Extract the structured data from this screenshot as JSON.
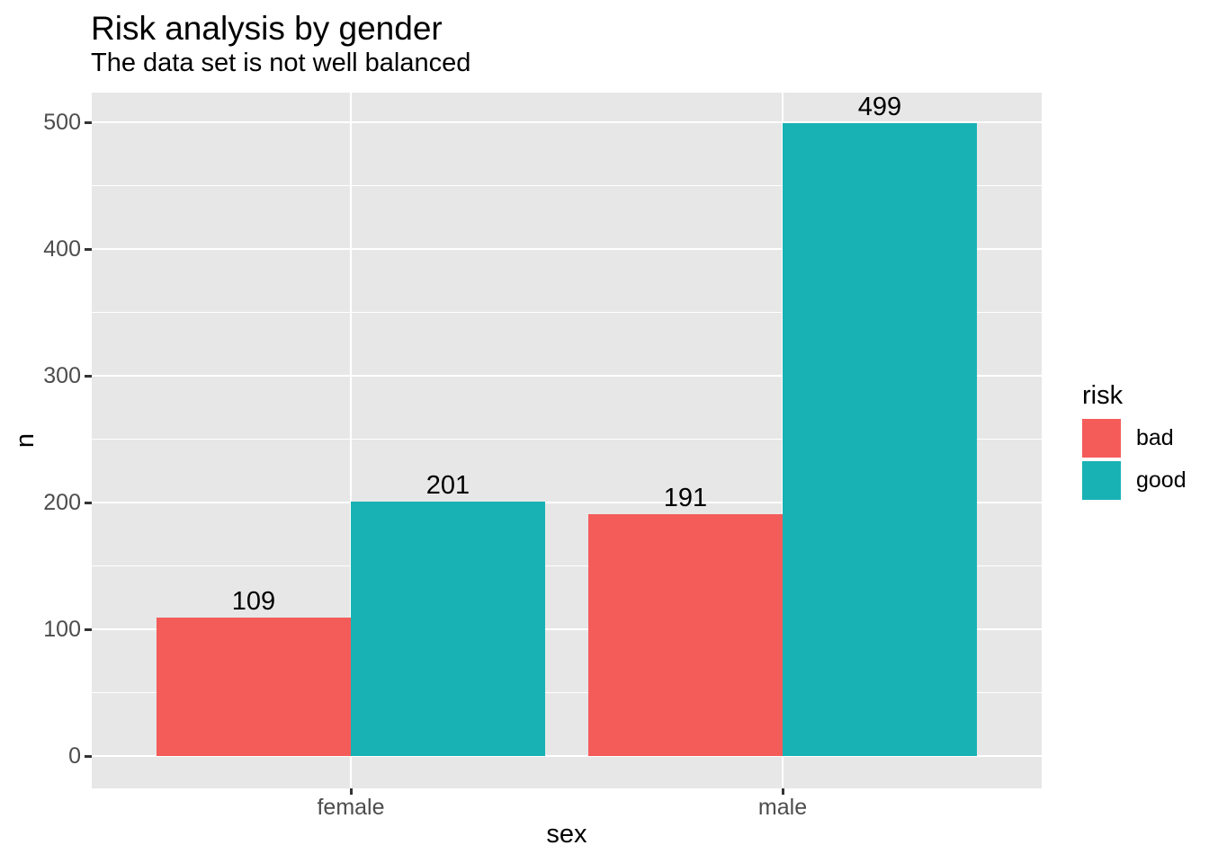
{
  "chart_data": {
    "type": "bar",
    "title": "Risk analysis by gender",
    "subtitle": "The data set is not well balanced",
    "xlabel": "sex",
    "ylabel": "n",
    "categories": [
      "female",
      "male"
    ],
    "series": [
      {
        "name": "bad",
        "color": "#F45C5A",
        "values": [
          109,
          191
        ]
      },
      {
        "name": "good",
        "color": "#18B2B5",
        "values": [
          201,
          499
        ]
      }
    ],
    "bar_value_labels": [
      [
        109,
        191
      ],
      [
        201,
        499
      ]
    ],
    "ylim": [
      0,
      500
    ],
    "yticks": [
      0,
      100,
      200,
      300,
      400,
      500
    ],
    "yticks_minor": [
      50,
      150,
      250,
      350,
      450
    ],
    "legend": {
      "title": "risk",
      "position": "right",
      "entries": [
        "bad",
        "good"
      ]
    },
    "grid": true,
    "style": {
      "panel_background": "#E7E7E7",
      "grid_color": "#FFFFFF",
      "tick_label_color": "#4D4D4D",
      "tick_mark_color": "#333333",
      "text_color": "#000000"
    }
  }
}
